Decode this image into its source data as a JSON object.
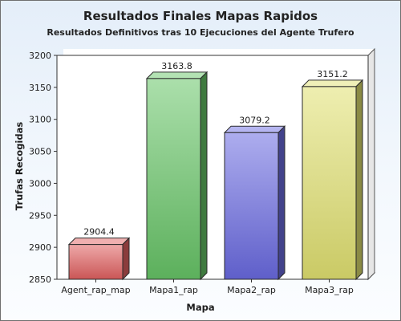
{
  "chart_data": {
    "type": "bar",
    "title": "Resultados Finales Mapas Rapidos",
    "subtitle": "Resultados Definitivos tras 10 Ejecuciones del Agente Trufero",
    "xlabel": "Mapa",
    "ylabel": "Trufas Recogidas",
    "categories": [
      "Agent_rap_map",
      "Mapa1_rap",
      "Mapa2_rap",
      "Mapa3_rap"
    ],
    "values": [
      2904.4,
      3163.8,
      3079.2,
      3151.2
    ],
    "value_labels": [
      "2904.4",
      "3163.8",
      "3079.2",
      "3151.2"
    ],
    "ylim": [
      2850,
      3200
    ],
    "yticks": [
      "2850",
      "2900",
      "2950",
      "3000",
      "3050",
      "3100",
      "3150",
      "3200"
    ],
    "grid": false,
    "legend": "none",
    "bar_style": "3d",
    "colors": [
      "#e06060",
      "#66c466",
      "#6a6ae0",
      "#e0e070"
    ]
  }
}
